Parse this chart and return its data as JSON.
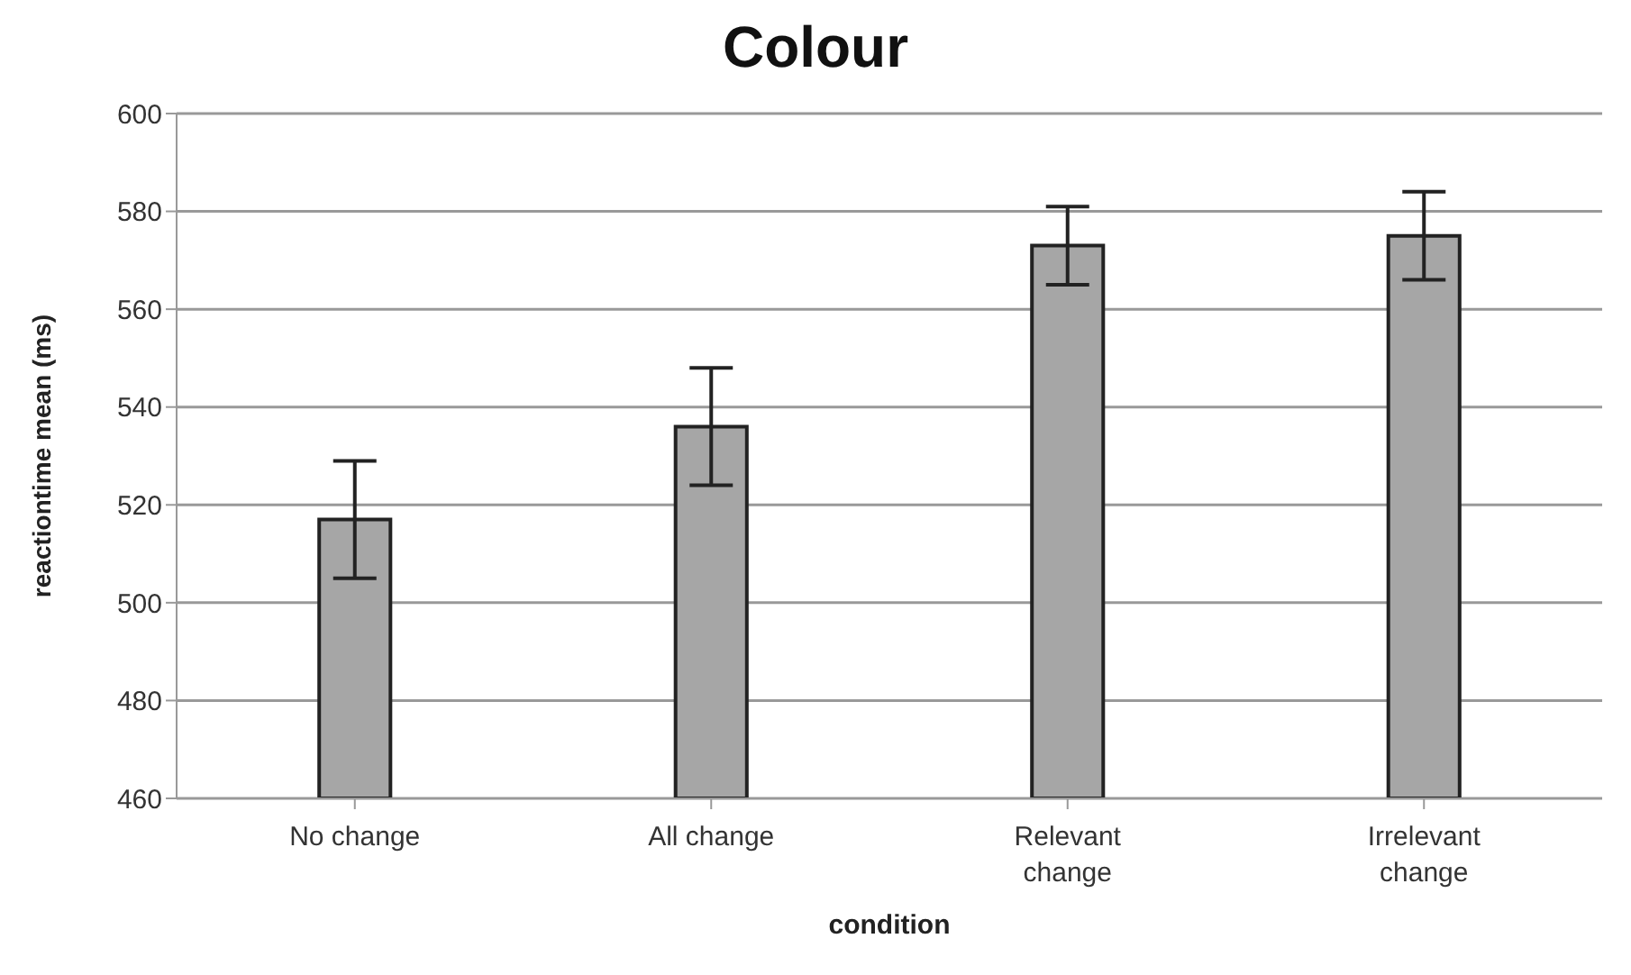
{
  "chart_data": {
    "type": "bar",
    "title": "Colour",
    "xlabel": "condition",
    "ylabel": "reactiontime mean (ms)",
    "categories": [
      "No change",
      "All change",
      "Relevant change",
      "Irrelevant change"
    ],
    "values": [
      517,
      536,
      573,
      575
    ],
    "errors": [
      12,
      12,
      8,
      9
    ],
    "color": "#a6a6a6",
    "ylim": [
      460,
      600
    ],
    "yticks": [
      460,
      480,
      500,
      520,
      540,
      560,
      580,
      600
    ],
    "grid": "y"
  }
}
